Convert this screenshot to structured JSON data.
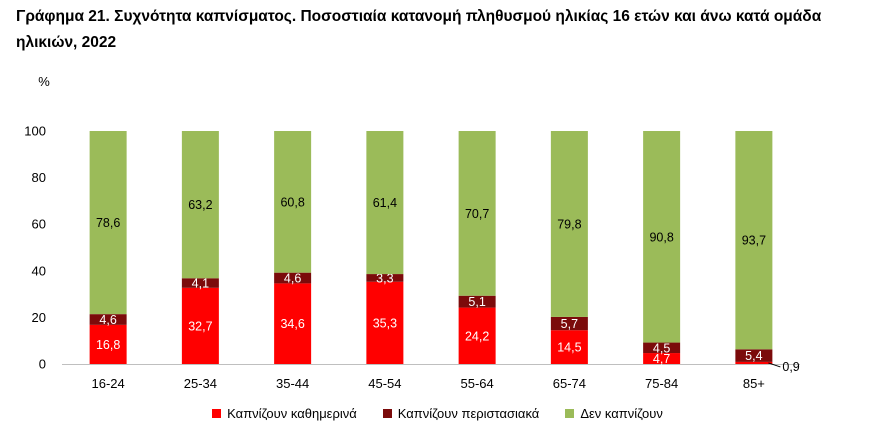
{
  "chart_data": {
    "type": "bar",
    "stacked": true,
    "title": "Γράφημα 21. Συχνότητα καπνίσματος. Ποσοστιαία κατανομή πληθυσμού ηλικίας 16 ετών και άνω κατά ομάδα ηλικιών, 2022",
    "ylabel": "%",
    "xlabel": "",
    "ylim": [
      0,
      100
    ],
    "yticks": [
      "0",
      "20",
      "40",
      "60",
      "80",
      "100"
    ],
    "categories": [
      "16-24",
      "25-34",
      "35-44",
      "45-54",
      "55-64",
      "65-74",
      "75-84",
      "85+"
    ],
    "series": [
      {
        "name": "Καπνίζουν καθημερινά",
        "color": "#ff0000",
        "values": [
          16.8,
          32.7,
          34.6,
          35.3,
          24.2,
          14.5,
          4.7,
          0.9
        ],
        "labels": [
          "16,8",
          "32,7",
          "34,6",
          "35,3",
          "24,2",
          "14,5",
          "4,7",
          "0,9"
        ]
      },
      {
        "name": "Καπνίζουν περιστασιακά",
        "color": "#7b0b0b",
        "values": [
          4.6,
          4.1,
          4.6,
          3.3,
          5.1,
          5.7,
          4.5,
          5.4
        ],
        "labels": [
          "4,6",
          "4,1",
          "4,6",
          "3,3",
          "5,1",
          "5,7",
          "4,5",
          "5,4"
        ]
      },
      {
        "name": "Δεν καπνίζουν",
        "color": "#9bbb59",
        "values": [
          78.6,
          63.2,
          60.8,
          61.4,
          70.7,
          79.8,
          90.8,
          93.7
        ],
        "labels": [
          "78,6",
          "63,2",
          "60,8",
          "61,4",
          "70,7",
          "79,8",
          "90,8",
          "93,7"
        ]
      }
    ],
    "legend_position": "bottom",
    "grid": false
  }
}
